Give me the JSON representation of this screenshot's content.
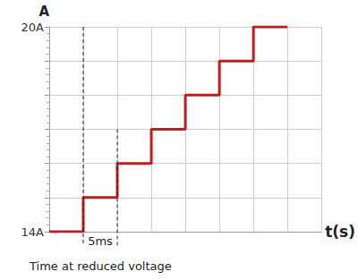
{
  "chart_data": {
    "type": "line",
    "line_style": "step",
    "color": "#d0141e",
    "x_label": "t(s)",
    "y_label": "A",
    "x": [
      0,
      5,
      10,
      15,
      20,
      25,
      30,
      35
    ],
    "values": [
      14,
      15,
      16,
      17,
      18,
      19,
      20,
      20
    ],
    "xlim": [
      0,
      40
    ],
    "xticks": [
      0,
      5,
      10,
      15,
      20,
      25,
      30,
      35,
      40
    ],
    "ylim": [
      14,
      20
    ],
    "yticks": [
      {
        "value": 14,
        "label": "14A"
      },
      {
        "value": 15,
        "label": null
      },
      {
        "value": 16,
        "label": null
      },
      {
        "value": 17,
        "label": null
      },
      {
        "value": 18,
        "label": null
      },
      {
        "value": 19,
        "label": null
      },
      {
        "value": 20,
        "label": "20A"
      }
    ],
    "grid": true,
    "tick_labels": "y",
    "reference_lines": [
      {
        "x": 5,
        "y_top": 20
      },
      {
        "x": 10,
        "y_top": 17
      }
    ],
    "annotations": [
      {
        "text": "5ms",
        "x_start": 5,
        "x_end": 10
      },
      {
        "text": "Time at reduced voltage"
      }
    ]
  }
}
